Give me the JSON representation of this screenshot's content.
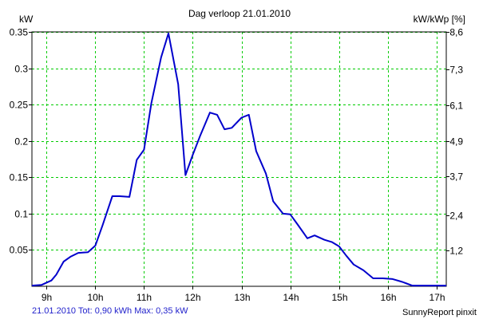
{
  "chart_data": {
    "type": "line",
    "title": "Dag  verloop 21.01.2010",
    "y_left_label": "kW",
    "y_right_label": "kW/kWp [%]",
    "x_ticks": [
      {
        "h": 9,
        "label": "9h"
      },
      {
        "h": 10,
        "label": "10h"
      },
      {
        "h": 11,
        "label": "11h"
      },
      {
        "h": 12,
        "label": "12h"
      },
      {
        "h": 13,
        "label": "13h"
      },
      {
        "h": 14,
        "label": "14h"
      },
      {
        "h": 15,
        "label": "15h"
      },
      {
        "h": 16,
        "label": "16h"
      },
      {
        "h": 17,
        "label": "17h"
      }
    ],
    "xlim": [
      8.7,
      17.2
    ],
    "ylim": [
      0,
      0.35
    ],
    "y_left_ticks": [
      {
        "v": 0.05,
        "label": "0.05"
      },
      {
        "v": 0.1,
        "label": "0.1"
      },
      {
        "v": 0.15,
        "label": "0.15"
      },
      {
        "v": 0.2,
        "label": "0.2"
      },
      {
        "v": 0.25,
        "label": "0.25"
      },
      {
        "v": 0.3,
        "label": "0.3"
      },
      {
        "v": 0.35,
        "label": "0.35"
      }
    ],
    "y_right_ticks": [
      {
        "v": 0.049,
        "label": "1,2"
      },
      {
        "v": 0.098,
        "label": "2,4"
      },
      {
        "v": 0.151,
        "label": "3,7"
      },
      {
        "v": 0.2,
        "label": "4,9"
      },
      {
        "v": 0.249,
        "label": "6,1"
      },
      {
        "v": 0.298,
        "label": "7,3"
      },
      {
        "v": 0.35,
        "label": "8,6"
      }
    ],
    "grid": true,
    "series": [
      {
        "color": "#0000cc",
        "points": [
          [
            8.7,
            0.001
          ],
          [
            8.9,
            0.002
          ],
          [
            9.1,
            0.008
          ],
          [
            9.2,
            0.016
          ],
          [
            9.35,
            0.034
          ],
          [
            9.5,
            0.041
          ],
          [
            9.65,
            0.046
          ],
          [
            9.85,
            0.047
          ],
          [
            10.0,
            0.056
          ],
          [
            10.15,
            0.084
          ],
          [
            10.35,
            0.124
          ],
          [
            10.5,
            0.124
          ],
          [
            10.7,
            0.123
          ],
          [
            10.85,
            0.174
          ],
          [
            11.0,
            0.188
          ],
          [
            11.15,
            0.252
          ],
          [
            11.35,
            0.315
          ],
          [
            11.5,
            0.348
          ],
          [
            11.7,
            0.278
          ],
          [
            11.85,
            0.153
          ],
          [
            12.0,
            0.181
          ],
          [
            12.15,
            0.207
          ],
          [
            12.35,
            0.239
          ],
          [
            12.5,
            0.236
          ],
          [
            12.65,
            0.216
          ],
          [
            12.8,
            0.218
          ],
          [
            13.0,
            0.232
          ],
          [
            13.15,
            0.236
          ],
          [
            13.3,
            0.186
          ],
          [
            13.5,
            0.155
          ],
          [
            13.65,
            0.117
          ],
          [
            13.85,
            0.1
          ],
          [
            14.0,
            0.099
          ],
          [
            14.15,
            0.085
          ],
          [
            14.35,
            0.066
          ],
          [
            14.5,
            0.07
          ],
          [
            14.7,
            0.064
          ],
          [
            14.85,
            0.061
          ],
          [
            15.0,
            0.055
          ],
          [
            15.15,
            0.042
          ],
          [
            15.3,
            0.03
          ],
          [
            15.5,
            0.022
          ],
          [
            15.7,
            0.011
          ],
          [
            15.9,
            0.011
          ],
          [
            16.1,
            0.01
          ],
          [
            16.3,
            0.006
          ],
          [
            16.5,
            0.001
          ],
          [
            17.2,
            0.001
          ]
        ]
      }
    ]
  },
  "footer": {
    "summary": "21.01.2010 Tot: 0,90 kWh Max: 0,35 kW",
    "brand": "SunnyReport pinxit"
  }
}
